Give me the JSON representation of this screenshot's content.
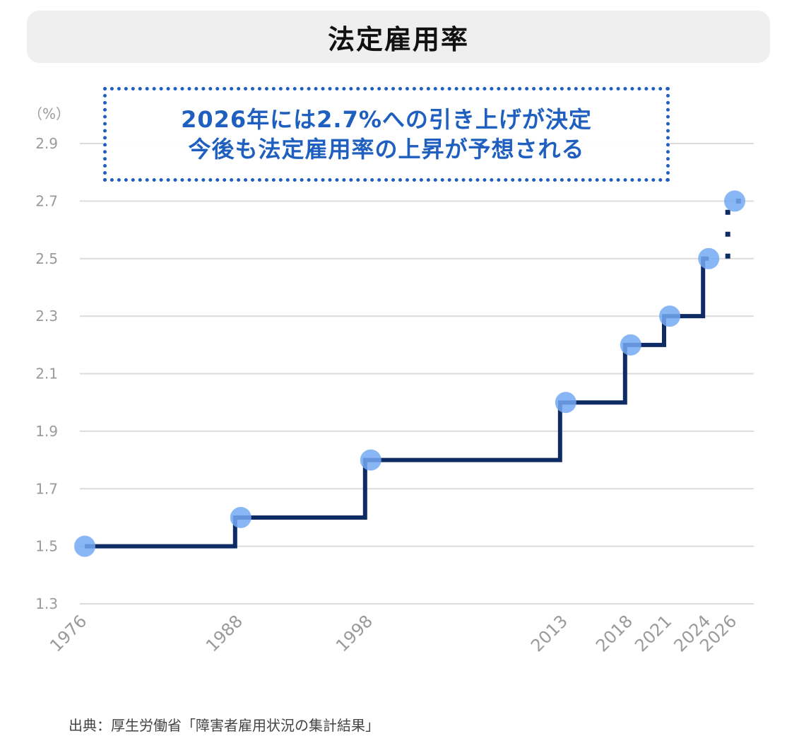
{
  "title": "法定雇用率",
  "note": {
    "line1": "2026年には2.7%への引き上げが決定",
    "line2": "今後も法定雇用率の上昇が予想される"
  },
  "source": "出典：厚生労働省「障害者雇用状況の集計結果」",
  "colors": {
    "line": "#0e2b63",
    "marker": "#74a9f2",
    "grid": "#dcdcdc",
    "note": "#1e5fbf",
    "tick": "#9a9a9a"
  },
  "chart_data": {
    "type": "line",
    "step": true,
    "unit_label": "（%）",
    "y_ticks": [
      "1.3",
      "1.5",
      "1.7",
      "1.9",
      "2.1",
      "2.3",
      "2.5",
      "2.7",
      "2.9"
    ],
    "ylim": [
      1.3,
      2.9
    ],
    "grid": true,
    "x": [
      1976,
      1988,
      1998,
      2013,
      2018,
      2021,
      2024,
      2026
    ],
    "x_labels": [
      "1976",
      "1988",
      "1998",
      "2013",
      "2018",
      "2021",
      "2024",
      "2026"
    ],
    "values": [
      1.5,
      1.6,
      1.8,
      2.0,
      2.2,
      2.3,
      2.5,
      2.7
    ],
    "projected_from_index": 6
  }
}
